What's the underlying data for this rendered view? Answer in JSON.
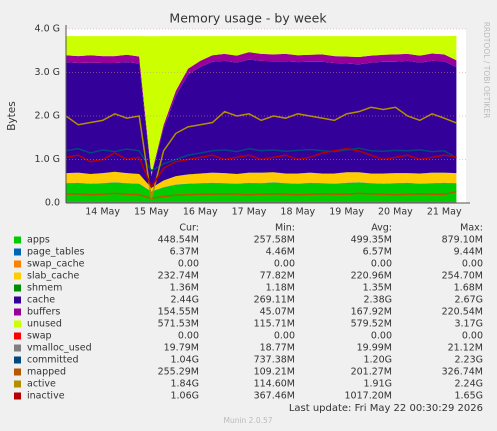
{
  "chart_data": {
    "type": "area",
    "title": "Memory usage - by week",
    "ylabel": "Bytes",
    "side_text": "RRDTOOL / TOBI OETIKER",
    "footer": "Last update: Fri May 22 00:30:29 2026",
    "credit": "Munin 2.0.57",
    "grid": true,
    "ylim": [
      0,
      4
    ],
    "yticks": [
      {
        "value": 0,
        "label": "0.0"
      },
      {
        "value": 1,
        "label": "1.0 G"
      },
      {
        "value": 2,
        "label": "2.0 G"
      },
      {
        "value": 3,
        "label": "3.0 G"
      },
      {
        "value": 4,
        "label": "4.0 G"
      }
    ],
    "categories": [
      null,
      null,
      null,
      "14 May",
      null,
      null,
      null,
      "15 May",
      null,
      null,
      null,
      "16 May",
      null,
      null,
      null,
      "17 May",
      null,
      null,
      null,
      "18 May",
      null,
      null,
      null,
      "19 May",
      null,
      null,
      null,
      "20 May",
      null,
      null,
      null,
      "21 May",
      null
    ],
    "series": [
      {
        "name": "apps",
        "color": "#00cc00",
        "stack": true,
        "values": [
          0.45,
          0.46,
          0.44,
          0.45,
          0.47,
          0.45,
          0.44,
          0.26,
          0.36,
          0.42,
          0.44,
          0.45,
          0.46,
          0.45,
          0.44,
          0.46,
          0.45,
          0.47,
          0.45,
          0.44,
          0.46,
          0.45,
          0.44,
          0.46,
          0.47,
          0.45,
          0.44,
          0.45,
          0.46,
          0.44,
          0.45,
          0.46,
          0.45
        ]
      },
      {
        "name": "page_tables",
        "color": "#0066b3",
        "stack": true,
        "values": [
          0.006,
          0.006,
          0.006,
          0.006,
          0.006,
          0.006,
          0.006,
          0.006,
          0.006,
          0.006,
          0.006,
          0.006,
          0.006,
          0.006,
          0.006,
          0.006,
          0.006,
          0.006,
          0.006,
          0.006,
          0.006,
          0.006,
          0.006,
          0.006,
          0.006,
          0.006,
          0.006,
          0.006,
          0.006,
          0.006,
          0.006,
          0.006,
          0.006
        ]
      },
      {
        "name": "swap_cache",
        "color": "#ff8000",
        "stack": true,
        "values": [
          0,
          0,
          0,
          0,
          0,
          0,
          0,
          0,
          0,
          0,
          0,
          0,
          0,
          0,
          0,
          0,
          0,
          0,
          0,
          0,
          0,
          0,
          0,
          0,
          0,
          0,
          0,
          0,
          0,
          0,
          0,
          0,
          0
        ]
      },
      {
        "name": "slab_cache",
        "color": "#ffcc00",
        "stack": true,
        "values": [
          0.23,
          0.23,
          0.22,
          0.23,
          0.24,
          0.23,
          0.22,
          0.08,
          0.15,
          0.19,
          0.21,
          0.22,
          0.23,
          0.23,
          0.22,
          0.23,
          0.24,
          0.23,
          0.22,
          0.23,
          0.23,
          0.22,
          0.23,
          0.24,
          0.23,
          0.22,
          0.23,
          0.23,
          0.22,
          0.23,
          0.24,
          0.23,
          0.23
        ]
      },
      {
        "name": "shmem",
        "color": "#008f00",
        "stack": true,
        "values": [
          0.0014,
          0.0014,
          0.0014,
          0.0014,
          0.0014,
          0.0014,
          0.0014,
          0.0014,
          0.0014,
          0.0014,
          0.0014,
          0.0014,
          0.0014,
          0.0014,
          0.0014,
          0.0014,
          0.0014,
          0.0014,
          0.0014,
          0.0014,
          0.0014,
          0.0014,
          0.0014,
          0.0014,
          0.0014,
          0.0014,
          0.0014,
          0.0014,
          0.0014,
          0.0014,
          0.0014,
          0.0014,
          0.0014
        ]
      },
      {
        "name": "cache",
        "color": "#330099",
        "stack": true,
        "values": [
          2.55,
          2.52,
          2.56,
          2.53,
          2.5,
          2.55,
          2.54,
          0.27,
          1.2,
          1.85,
          2.3,
          2.45,
          2.55,
          2.58,
          2.56,
          2.6,
          2.57,
          2.55,
          2.58,
          2.56,
          2.55,
          2.57,
          2.54,
          2.5,
          2.48,
          2.55,
          2.57,
          2.56,
          2.58,
          2.55,
          2.57,
          2.56,
          2.44
        ]
      },
      {
        "name": "buffers",
        "color": "#990099",
        "stack": true,
        "values": [
          0.16,
          0.16,
          0.17,
          0.16,
          0.16,
          0.17,
          0.16,
          0.045,
          0.08,
          0.11,
          0.13,
          0.14,
          0.15,
          0.16,
          0.16,
          0.17,
          0.16,
          0.16,
          0.17,
          0.16,
          0.16,
          0.17,
          0.16,
          0.16,
          0.17,
          0.16,
          0.16,
          0.17,
          0.16,
          0.16,
          0.17,
          0.16,
          0.155
        ]
      },
      {
        "name": "unused",
        "color": "#ccff00",
        "stack": true,
        "values": [
          0.44,
          0.46,
          0.44,
          0.46,
          0.46,
          0.43,
          0.47,
          3.17,
          2.04,
          1.26,
          0.75,
          0.57,
          0.44,
          0.41,
          0.45,
          0.37,
          0.41,
          0.42,
          0.41,
          0.44,
          0.43,
          0.42,
          0.46,
          0.47,
          0.48,
          0.45,
          0.43,
          0.42,
          0.41,
          0.45,
          0.4,
          0.42,
          0.56
        ]
      },
      {
        "name": "swap",
        "color": "#ff0000",
        "stack": true,
        "values": [
          0,
          0,
          0,
          0,
          0,
          0,
          0,
          0,
          0,
          0,
          0,
          0,
          0,
          0,
          0,
          0,
          0,
          0,
          0,
          0,
          0,
          0,
          0,
          0,
          0,
          0,
          0,
          0,
          0,
          0,
          0,
          0,
          0
        ]
      },
      {
        "name": "vmalloc_used",
        "color": "#808080",
        "stack": false,
        "values": [
          0.02,
          0.02,
          0.02,
          0.02,
          0.02,
          0.02,
          0.02,
          0.02,
          0.02,
          0.02,
          0.02,
          0.02,
          0.02,
          0.02,
          0.02,
          0.02,
          0.02,
          0.02,
          0.02,
          0.02,
          0.02,
          0.02,
          0.02,
          0.02,
          0.02,
          0.02,
          0.02,
          0.02,
          0.02,
          0.02,
          0.02,
          0.02,
          0.02
        ]
      },
      {
        "name": "committed",
        "color": "#00487d",
        "stack": false,
        "values": [
          1.2,
          1.25,
          1.15,
          1.22,
          1.18,
          1.24,
          1.2,
          0.74,
          0.9,
          1.0,
          1.1,
          1.15,
          1.2,
          1.22,
          1.18,
          1.25,
          1.2,
          1.22,
          1.19,
          1.21,
          1.23,
          1.2,
          1.18,
          1.22,
          1.26,
          1.2,
          1.19,
          1.21,
          1.2,
          1.22,
          1.18,
          1.2,
          1.04
        ]
      },
      {
        "name": "mapped",
        "color": "#b35a00",
        "stack": false,
        "values": [
          0.2,
          0.21,
          0.19,
          0.2,
          0.22,
          0.2,
          0.19,
          0.11,
          0.15,
          0.18,
          0.19,
          0.2,
          0.2,
          0.21,
          0.2,
          0.19,
          0.2,
          0.21,
          0.2,
          0.19,
          0.2,
          0.21,
          0.2,
          0.2,
          0.22,
          0.21,
          0.2,
          0.19,
          0.2,
          0.21,
          0.2,
          0.2,
          0.26
        ]
      },
      {
        "name": "active",
        "color": "#b38f00",
        "stack": false,
        "values": [
          2.0,
          1.8,
          1.85,
          1.9,
          2.05,
          1.95,
          2.0,
          0.11,
          1.2,
          1.6,
          1.75,
          1.8,
          1.85,
          2.1,
          2.0,
          2.05,
          1.9,
          2.0,
          1.95,
          2.05,
          2.0,
          1.95,
          1.9,
          2.05,
          2.1,
          2.2,
          2.15,
          2.2,
          2.0,
          1.9,
          2.05,
          1.95,
          1.84
        ]
      },
      {
        "name": "inactive",
        "color": "#b30000",
        "stack": false,
        "values": [
          1.05,
          1.1,
          0.95,
          1.0,
          1.15,
          1.0,
          1.05,
          0.37,
          0.8,
          0.95,
          1.0,
          1.05,
          1.1,
          1.0,
          1.05,
          1.1,
          1.0,
          1.05,
          1.1,
          1.0,
          1.05,
          1.15,
          1.2,
          1.25,
          1.2,
          1.1,
          1.0,
          1.05,
          1.1,
          1.0,
          1.05,
          1.1,
          1.06
        ]
      }
    ],
    "stats": {
      "columns": [
        "Cur:",
        "Min:",
        "Avg:",
        "Max:"
      ],
      "rows": [
        [
          "448.54M",
          "257.58M",
          "499.35M",
          "879.10M"
        ],
        [
          "6.37M",
          "4.46M",
          "6.57M",
          "9.44M"
        ],
        [
          "0.00",
          "0.00",
          "0.00",
          "0.00"
        ],
        [
          "232.74M",
          "77.82M",
          "220.96M",
          "254.70M"
        ],
        [
          "1.36M",
          "1.18M",
          "1.35M",
          "1.68M"
        ],
        [
          "2.44G",
          "269.11M",
          "2.38G",
          "2.67G"
        ],
        [
          "154.55M",
          "45.07M",
          "167.92M",
          "220.54M"
        ],
        [
          "571.53M",
          "115.71M",
          "579.52M",
          "3.17G"
        ],
        [
          "0.00",
          "0.00",
          "0.00",
          "0.00"
        ],
        [
          "19.79M",
          "18.77M",
          "19.99M",
          "21.12M"
        ],
        [
          "1.04G",
          "737.38M",
          "1.20G",
          "2.23G"
        ],
        [
          "255.29M",
          "109.21M",
          "201.27M",
          "326.74M"
        ],
        [
          "1.84G",
          "114.60M",
          "1.91G",
          "2.24G"
        ],
        [
          "1.06G",
          "367.46M",
          "1017.20M",
          "1.65G"
        ]
      ]
    }
  }
}
